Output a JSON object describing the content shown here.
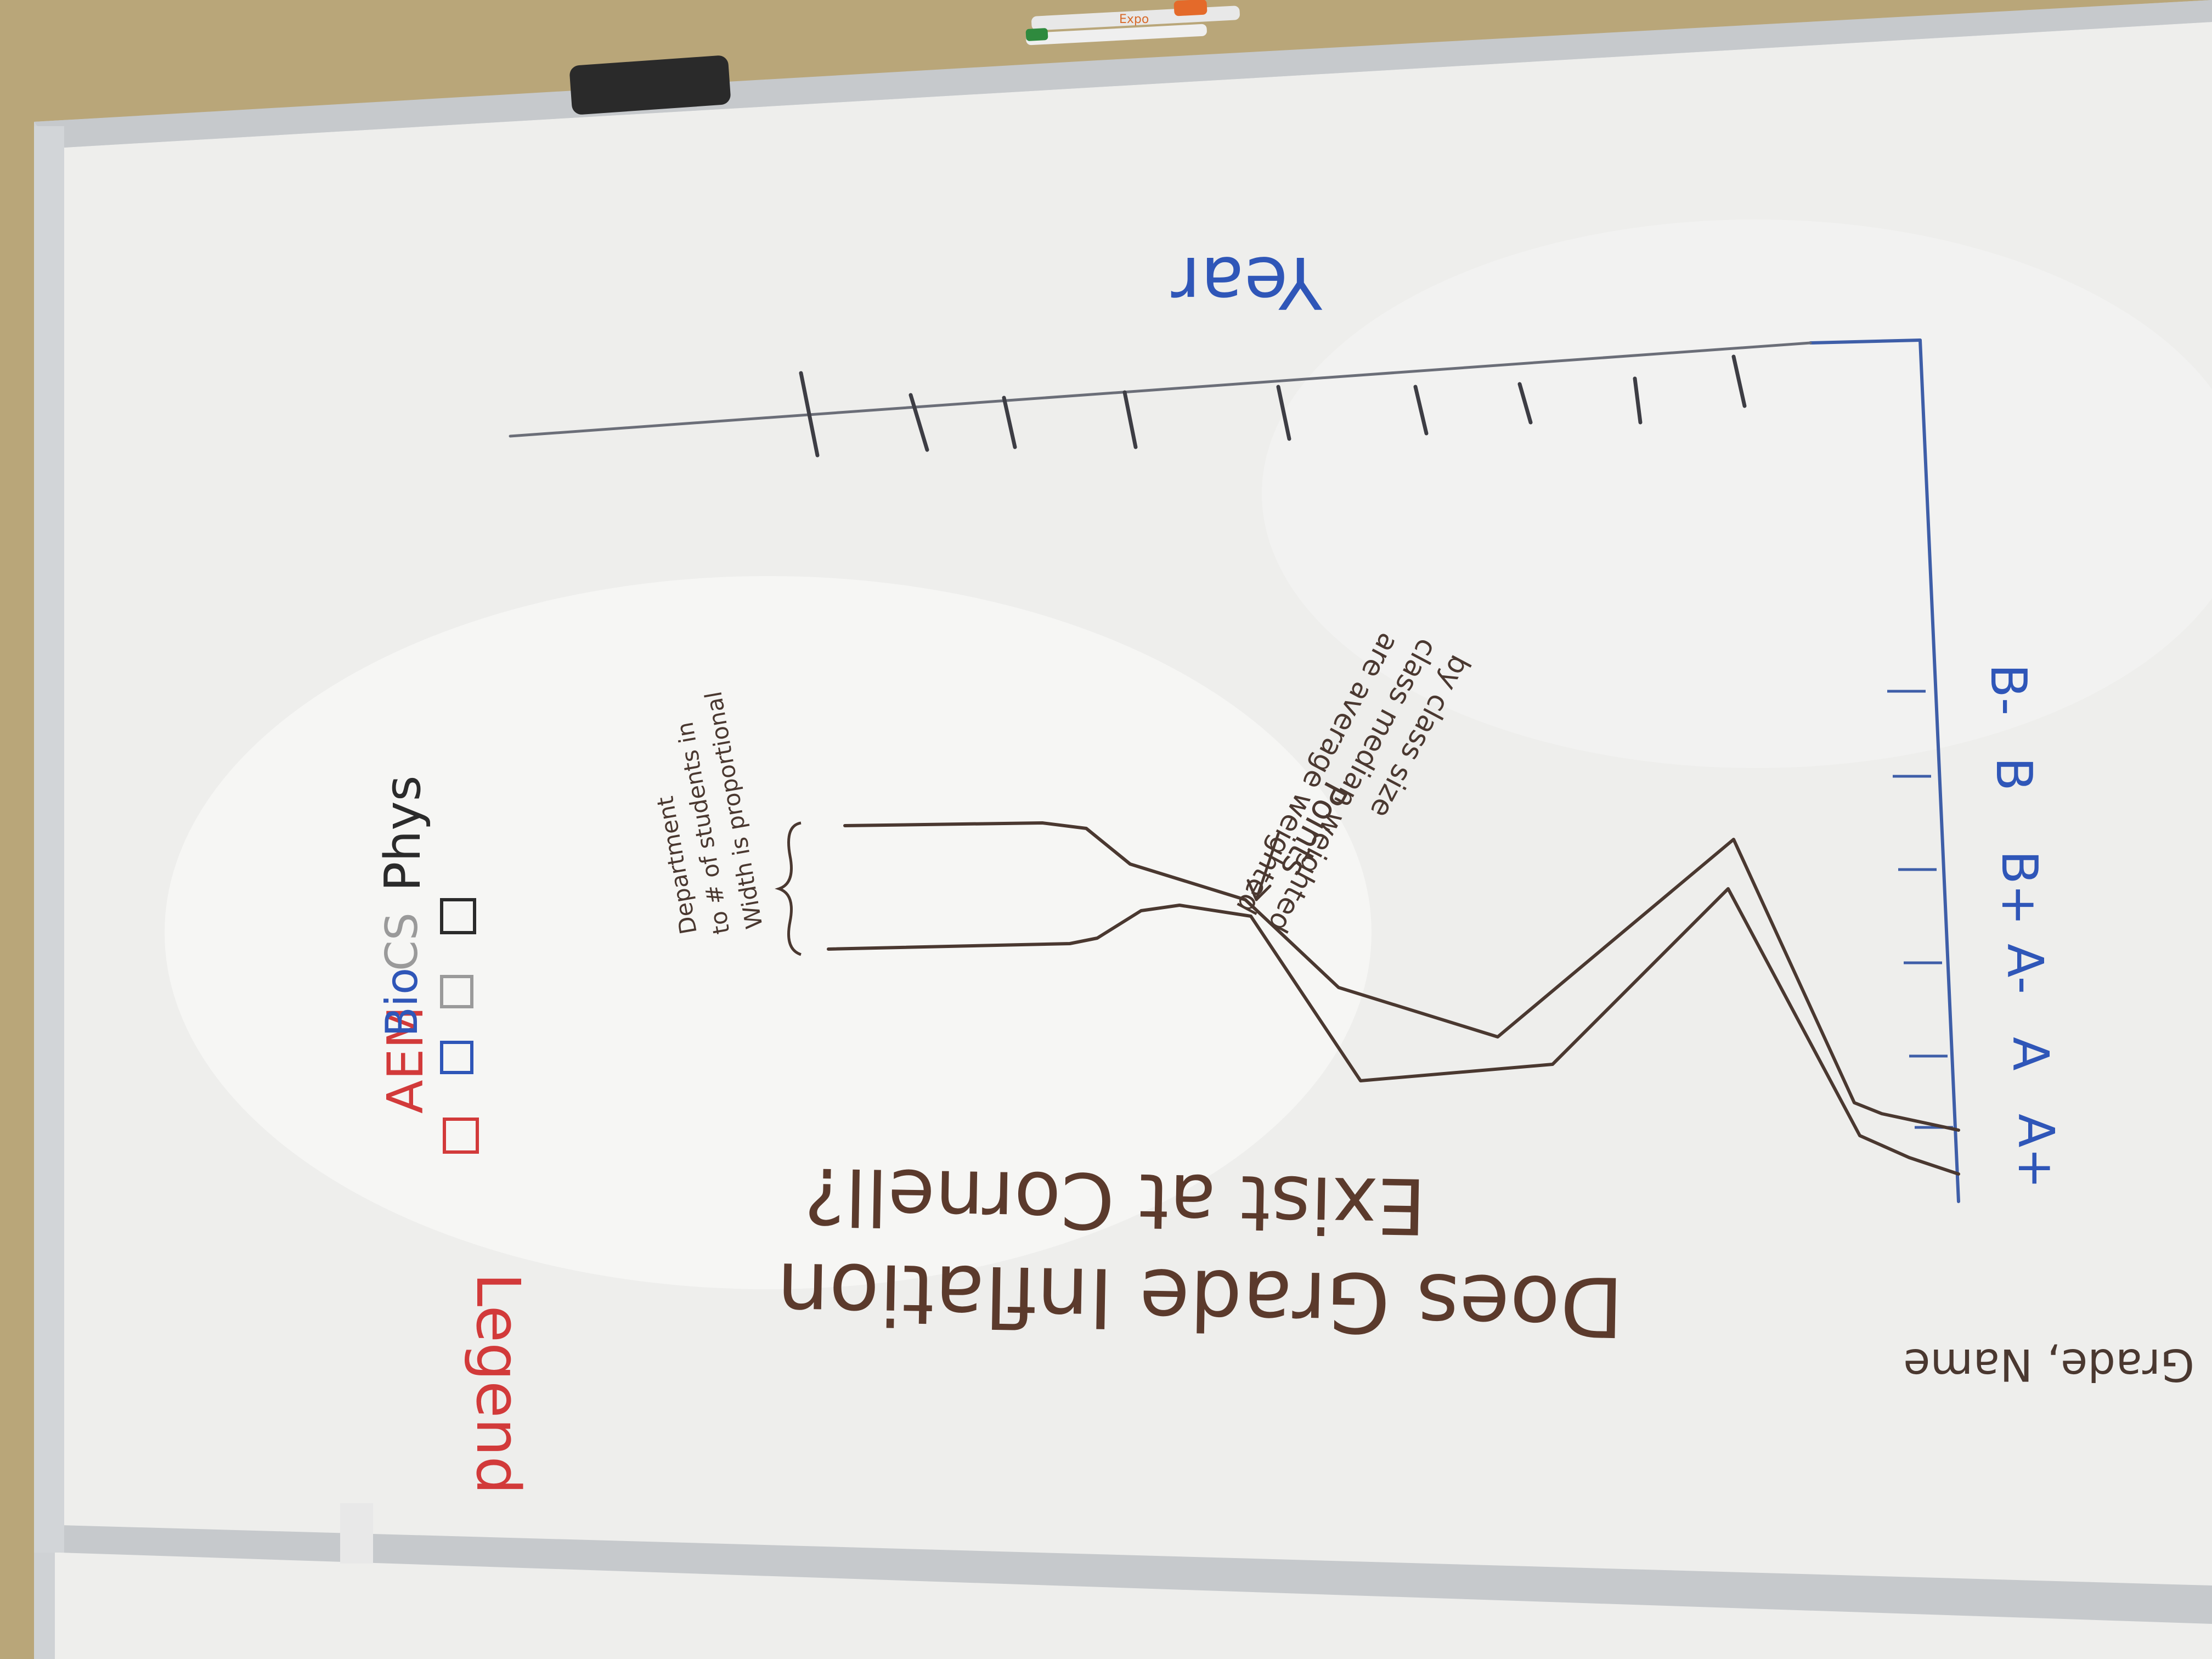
{
  "board": {
    "title_line1": "Does Grade Inflation",
    "title_line2": "Exist at Cornell?",
    "side_label": "Grade, Name",
    "x_axis_label": "Year",
    "y_ticks": [
      "A+",
      "A",
      "A-",
      "B+",
      "B",
      "B-"
    ],
    "annotation_points": {
      "line1": "Points",
      "line2": "are average weighted",
      "line3": "class median weighted",
      "line4": "by class size"
    },
    "annotation_width": {
      "line1": "Width is proportional",
      "line2": "to # of students in",
      "line3": "Department"
    },
    "legend": {
      "title": "Legend",
      "items": [
        {
          "label": "AEM",
          "color": "#d23a3a"
        },
        {
          "label": "Bio",
          "color": "#2f56b8"
        },
        {
          "label": "CS",
          "color": "#9a9a9a"
        },
        {
          "label": "Phys",
          "color": "#2b2b2b"
        }
      ]
    },
    "marker_label": "Expo"
  },
  "colors": {
    "board": "#f1f1ef",
    "wall": "#b8a57a",
    "frame": "#c9ccd0",
    "ink_brown": "#5b3a2c",
    "ink_blue": "#2f56b8",
    "ink_red": "#d23a3a",
    "ink_black": "#2b2b2b"
  }
}
